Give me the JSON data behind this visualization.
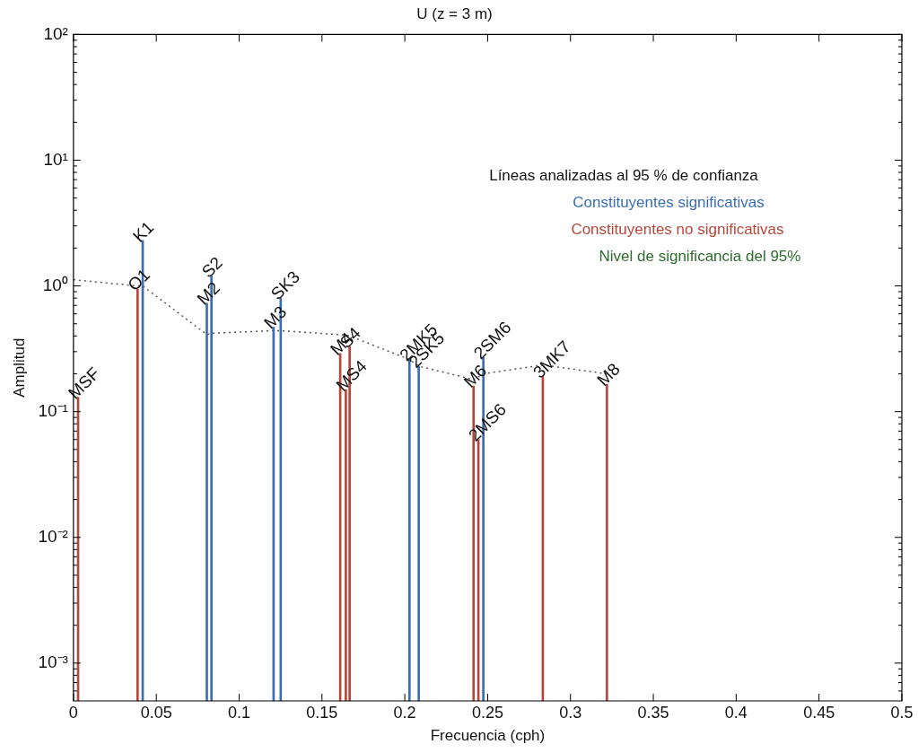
{
  "chart_data": {
    "type": "bar",
    "title": "U (z = 3 m)",
    "xlabel": "Frecuencia (cph)",
    "ylabel": "Amplitud",
    "legend_title": "Líneas analizadas al 95 % de confianza",
    "legend": "top right",
    "log": "y",
    "grid": false,
    "xlim": [
      0,
      0.5
    ],
    "xticks": [
      0,
      0.05,
      0.1,
      0.15,
      0.2,
      0.25,
      0.3,
      0.35,
      0.4,
      0.45,
      0.5
    ],
    "ylim": [
      0.0005,
      100
    ],
    "yticks": [
      {
        "value": 0.0006,
        "label": null
      },
      {
        "value": 0.0007,
        "label": null
      },
      {
        "value": 0.0008,
        "label": null
      },
      {
        "value": 0.0009,
        "label": null
      },
      {
        "value": 0.001,
        "label": "10⁻³"
      },
      {
        "value": 0.002,
        "label": null
      },
      {
        "value": 0.003,
        "label": null
      },
      {
        "value": 0.004,
        "label": null
      },
      {
        "value": 0.005,
        "label": null
      },
      {
        "value": 0.006,
        "label": null
      },
      {
        "value": 0.007,
        "label": null
      },
      {
        "value": 0.008,
        "label": null
      },
      {
        "value": 0.009,
        "label": null
      },
      {
        "value": 0.01,
        "label": "10⁻²"
      },
      {
        "value": 0.02,
        "label": null
      },
      {
        "value": 0.03,
        "label": null
      },
      {
        "value": 0.04,
        "label": null
      },
      {
        "value": 0.05,
        "label": null
      },
      {
        "value": 0.06,
        "label": null
      },
      {
        "value": 0.07,
        "label": null
      },
      {
        "value": 0.08,
        "label": null
      },
      {
        "value": 0.09,
        "label": null
      },
      {
        "value": 0.1,
        "label": "10⁻¹"
      },
      {
        "value": 0.2,
        "label": null
      },
      {
        "value": 0.3,
        "label": null
      },
      {
        "value": 0.4,
        "label": null
      },
      {
        "value": 0.5,
        "label": null
      },
      {
        "value": 0.6,
        "label": null
      },
      {
        "value": 0.7,
        "label": null
      },
      {
        "value": 0.8,
        "label": null
      },
      {
        "value": 0.9,
        "label": null
      },
      {
        "value": 1,
        "label": "10⁰"
      },
      {
        "value": 2,
        "label": null
      },
      {
        "value": 3,
        "label": null
      },
      {
        "value": 4,
        "label": null
      },
      {
        "value": 5,
        "label": null
      },
      {
        "value": 6,
        "label": null
      },
      {
        "value": 7,
        "label": null
      },
      {
        "value": 8,
        "label": null
      },
      {
        "value": 9,
        "label": null
      },
      {
        "value": 10,
        "label": "10¹"
      },
      {
        "value": 20,
        "label": null
      },
      {
        "value": 30,
        "label": null
      },
      {
        "value": 40,
        "label": null
      },
      {
        "value": 50,
        "label": null
      },
      {
        "value": 60,
        "label": null
      },
      {
        "value": 70,
        "label": null
      },
      {
        "value": 80,
        "label": null
      },
      {
        "value": 90,
        "label": null
      },
      {
        "value": 100,
        "label": "10²"
      }
    ],
    "series": [
      {
        "name": "Constituyentes significativas",
        "color": "#3a6db5",
        "x": [
          0.0418,
          0.0805,
          0.0833,
          0.1208,
          0.1251,
          0.2028,
          0.2084,
          0.2474
        ],
        "values": [
          2.3,
          0.73,
          1.2,
          0.47,
          0.8,
          0.26,
          0.23,
          0.27
        ]
      },
      {
        "name": "Constituyentes no significativas",
        "color": "#b5473a",
        "x": [
          0.0028,
          0.0387,
          0.161,
          0.1644,
          0.1667,
          0.2415,
          0.2444,
          0.2833,
          0.322
        ],
        "values": [
          0.13,
          0.94,
          0.29,
          0.15,
          0.33,
          0.16,
          0.06,
          0.19,
          0.165
        ]
      },
      {
        "type": "line",
        "line_style": "dotted",
        "marker": "none",
        "color": "#555555",
        "x": [
          0,
          0.0387,
          0.0418,
          0.0805,
          0.0833,
          0.1208,
          0.1251,
          0.161,
          0.1667,
          0.2028,
          0.2084,
          0.2415,
          0.2474,
          0.2833,
          0.322
        ],
        "values": [
          1.12,
          1.0,
          1.0,
          0.41,
          0.42,
          0.44,
          0.44,
          0.41,
          0.4,
          0.26,
          0.23,
          0.18,
          0.2,
          0.235,
          0.2
        ]
      }
    ],
    "annotations": [
      {
        "text": "MSF",
        "x": 0.0028,
        "y": 0.13
      },
      {
        "text": "O1",
        "x": 0.0387,
        "y": 0.94
      },
      {
        "text": "K1",
        "x": 0.0418,
        "y": 2.3
      },
      {
        "text": "M2",
        "x": 0.0805,
        "y": 0.73
      },
      {
        "text": "S2",
        "x": 0.0833,
        "y": 1.2
      },
      {
        "text": "M3",
        "x": 0.1208,
        "y": 0.47
      },
      {
        "text": "SK3",
        "x": 0.1251,
        "y": 0.8
      },
      {
        "text": "M4",
        "x": 0.161,
        "y": 0.29
      },
      {
        "text": "MS4",
        "x": 0.1644,
        "y": 0.15
      },
      {
        "text": "S4",
        "x": 0.1667,
        "y": 0.33
      },
      {
        "text": "2MK5",
        "x": 0.2028,
        "y": 0.26
      },
      {
        "text": "2SK5",
        "x": 0.2084,
        "y": 0.23
      },
      {
        "text": "M6",
        "x": 0.2415,
        "y": 0.16
      },
      {
        "text": "2MS6",
        "x": 0.2444,
        "y": 0.06
      },
      {
        "text": "2SM6",
        "x": 0.2474,
        "y": 0.27
      },
      {
        "text": "3MK7",
        "x": 0.2833,
        "y": 0.19
      },
      {
        "text": "M8",
        "x": 0.322,
        "y": 0.165
      },
      "Nivel de significancia del 95%"
    ]
  }
}
